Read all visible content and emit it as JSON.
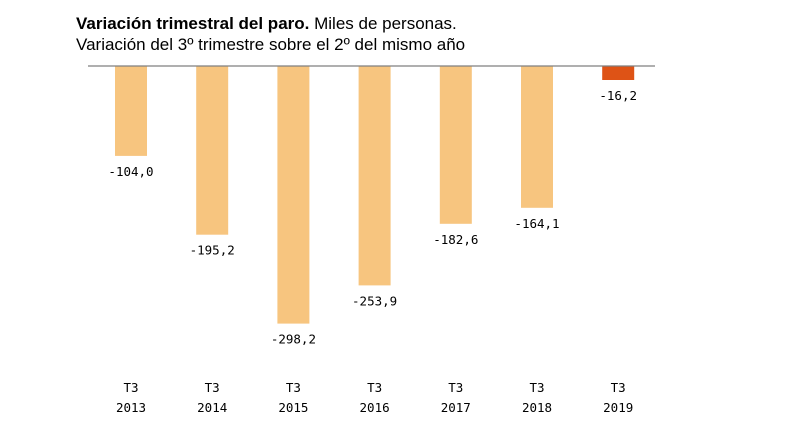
{
  "chart_data": {
    "type": "bar",
    "title_bold": "Variación trimestral del paro.",
    "title_rest": " Miles de personas.",
    "subtitle": "Variación del 3º trimestre sobre el 2º del mismo año",
    "xlabel": "",
    "ylabel": "",
    "ylim": [
      -340,
      0
    ],
    "grid": false,
    "legend": "none",
    "categories": [
      {
        "quarter": "T3",
        "year": "2013"
      },
      {
        "quarter": "T3",
        "year": "2014"
      },
      {
        "quarter": "T3",
        "year": "2015"
      },
      {
        "quarter": "T3",
        "year": "2016"
      },
      {
        "quarter": "T3",
        "year": "2017"
      },
      {
        "quarter": "T3",
        "year": "2018"
      },
      {
        "quarter": "T3",
        "year": "2019"
      }
    ],
    "values": [
      -104.0,
      -195.2,
      -298.2,
      -253.9,
      -182.6,
      -164.1,
      -16.2
    ],
    "value_labels": [
      "-104,0",
      "-195,2",
      "-298,2",
      "-253,9",
      "-182,6",
      "-164,1",
      "-16,2"
    ],
    "colors": {
      "bar": "#f7c57f",
      "highlight": "#de5316",
      "axis": "#7f7f7f"
    },
    "highlight_index": 6
  }
}
